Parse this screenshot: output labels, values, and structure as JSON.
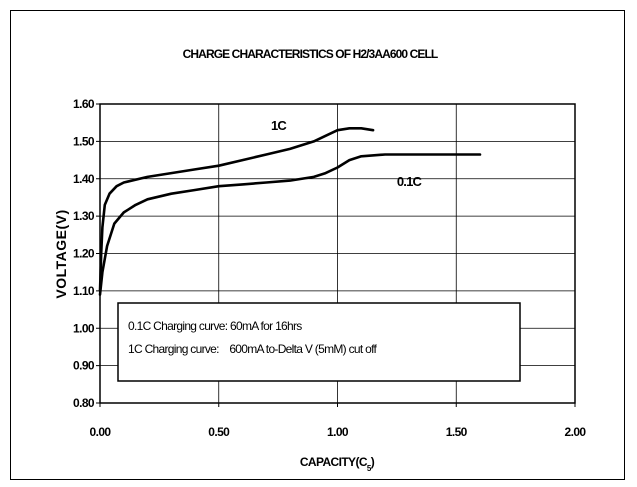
{
  "chart_data": {
    "type": "line",
    "title": "CHARGE CHARACTERISTICS OF H2/3AA600 CELL",
    "xlabel": "CAPACITY(C5)",
    "ylabel": "VOLTAGE(V)",
    "xlim": [
      0,
      2
    ],
    "ylim": [
      0.8,
      1.6
    ],
    "x_ticks": [
      "0.00",
      "0.50",
      "1.00",
      "1.50",
      "2.00"
    ],
    "y_ticks": [
      "0.80",
      "0.90",
      "1.00",
      "1.10",
      "1.20",
      "1.30",
      "1.40",
      "1.50",
      "1.60"
    ],
    "grid": true,
    "series": [
      {
        "name": "1C",
        "color": "#000000",
        "points": [
          [
            0.0,
            1.1
          ],
          [
            0.005,
            1.2
          ],
          [
            0.01,
            1.27
          ],
          [
            0.02,
            1.33
          ],
          [
            0.04,
            1.36
          ],
          [
            0.07,
            1.38
          ],
          [
            0.1,
            1.39
          ],
          [
            0.2,
            1.405
          ],
          [
            0.3,
            1.415
          ],
          [
            0.4,
            1.425
          ],
          [
            0.5,
            1.435
          ],
          [
            0.6,
            1.45
          ],
          [
            0.7,
            1.465
          ],
          [
            0.8,
            1.48
          ],
          [
            0.9,
            1.5
          ],
          [
            0.95,
            1.515
          ],
          [
            1.0,
            1.53
          ],
          [
            1.05,
            1.535
          ],
          [
            1.1,
            1.535
          ],
          [
            1.15,
            1.53
          ]
        ]
      },
      {
        "name": "0.1C",
        "color": "#000000",
        "points": [
          [
            0.0,
            1.09
          ],
          [
            0.01,
            1.15
          ],
          [
            0.03,
            1.22
          ],
          [
            0.06,
            1.28
          ],
          [
            0.1,
            1.31
          ],
          [
            0.15,
            1.33
          ],
          [
            0.2,
            1.345
          ],
          [
            0.3,
            1.36
          ],
          [
            0.4,
            1.37
          ],
          [
            0.5,
            1.38
          ],
          [
            0.6,
            1.385
          ],
          [
            0.7,
            1.39
          ],
          [
            0.8,
            1.395
          ],
          [
            0.9,
            1.405
          ],
          [
            0.95,
            1.415
          ],
          [
            1.0,
            1.43
          ],
          [
            1.05,
            1.45
          ],
          [
            1.1,
            1.46
          ],
          [
            1.2,
            1.465
          ],
          [
            1.4,
            1.465
          ],
          [
            1.6,
            1.465
          ]
        ]
      }
    ],
    "series_labels": [
      {
        "text": "1C",
        "x": 0.72,
        "y": 1.53
      },
      {
        "text": "0.1C",
        "x": 1.25,
        "y": 1.38
      }
    ],
    "note": {
      "line1": "0.1C Charging curve: 60mA for 16hrs",
      "line2": "1C Charging curve:    600mA to-Delta V (5mM) cut off"
    }
  }
}
